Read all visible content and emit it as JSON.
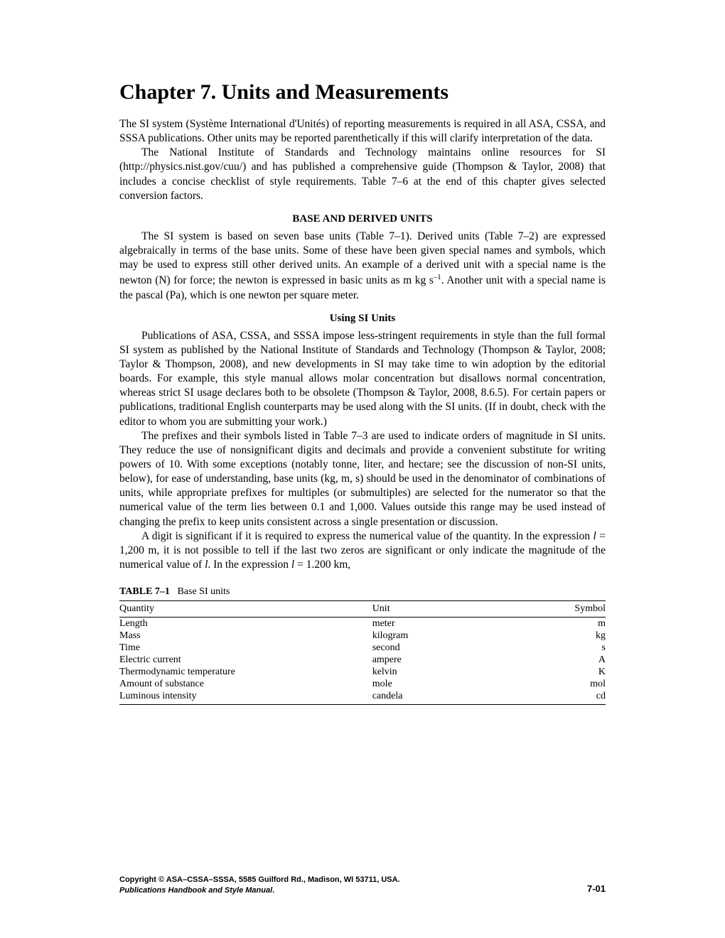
{
  "chapter_title": "Chapter 7. Units and Measurements",
  "p1": "The SI system (Système International d'Unités) of reporting measurements is required in all ASA, CSSA, and SSSA publications. Other units may be reported parenthetically if this will clarify interpretation of the data.",
  "p2": "The National Institute of Standards and Technology maintains online resources for SI (http://physics.nist.gov/cuu/) and has published a comprehensive guide (Thompson & Taylor, 2008) that includes a concise checklist of style requirements. Table 7–6 at the end of this chapter gives selected conversion factors.",
  "h1": "BASE AND DERIVED UNITS",
  "p3_a": "The SI system is based on seven base units (Table 7–1). Derived units (Table 7–2) are expressed algebraically in terms of the base units. Some of these have been given special names and symbols, which may be used to express still other derived units. An example of a derived unit with a special name is the newton (N) for force; the newton is expressed in basic units as m kg s",
  "p3_sup": "–1",
  "p3_b": ". Another unit with a special name is the pascal (Pa), which is one newton per square meter.",
  "h2": "Using SI Units",
  "p4": "Publications of ASA, CSSA, and SSSA impose less-stringent requirements in style than the full formal SI system as published by the National Institute of Standards and Technology (Thompson & Taylor, 2008; Taylor & Thompson, 2008), and new developments in SI may take time to win adoption by the editorial boards. For example, this style manual allows molar concentration but disallows normal concentration, whereas strict SI usage declares both to be obsolete (Thompson & Taylor, 2008, 8.6.5). For certain papers or publications, traditional English counterparts may be used along with the SI units. (If in doubt, check with the editor to whom you are submitting your work.)",
  "p5": "The prefixes and their symbols listed in Table 7–3 are used to indicate orders of magnitude in SI units. They reduce the use of nonsignificant digits and decimals and provide a convenient substitute for writing powers of 10. With some exceptions (notably tonne, liter, and hectare; see the discussion of non-SI units, below), for ease of understanding, base units (kg, m, s) should be used in the denominator of combinations of units, while appropriate prefixes for multiples (or submultiples) are selected for the numerator so that the numerical value of the term lies between 0.1 and 1,000. Values outside this range may be used instead of changing the prefix to keep units consistent across a single presentation or discussion.",
  "p6_a": " A digit is significant if it is required to express the numerical value of the quantity. In the expression ",
  "p6_l1": "l",
  "p6_b": " = 1,200 m, it is not possible to tell if the last two zeros are significant or only indicate the magnitude of the numerical value of ",
  "p6_l2": "l",
  "p6_c": ". In the expression ",
  "p6_l3": "l",
  "p6_d": " = 1.200 km,",
  "table": {
    "caption_label": "TABLE 7–1",
    "caption_text": "Base SI units",
    "headers": {
      "qty": "Quantity",
      "unit": "Unit",
      "sym": "Symbol"
    },
    "rows": [
      {
        "qty": "Length",
        "unit": "meter",
        "sym": "m"
      },
      {
        "qty": "Mass",
        "unit": "kilogram",
        "sym": "kg"
      },
      {
        "qty": "Time",
        "unit": "second",
        "sym": "s"
      },
      {
        "qty": "Electric current",
        "unit": "ampere",
        "sym": "A"
      },
      {
        "qty": "Thermodynamic temperature",
        "unit": "kelvin",
        "sym": "K"
      },
      {
        "qty": "Amount of substance",
        "unit": "mole",
        "sym": "mol"
      },
      {
        "qty": "Luminous intensity",
        "unit": "candela",
        "sym": "cd"
      }
    ]
  },
  "footer": {
    "line1": "Copyright © ASA–CSSA–SSSA, 5585 Guilford Rd., Madison, WI 53711, USA.",
    "line2_i": "Publications Handbook and Style Manual",
    "line2_dot": ".",
    "pagenum": "7-01"
  }
}
